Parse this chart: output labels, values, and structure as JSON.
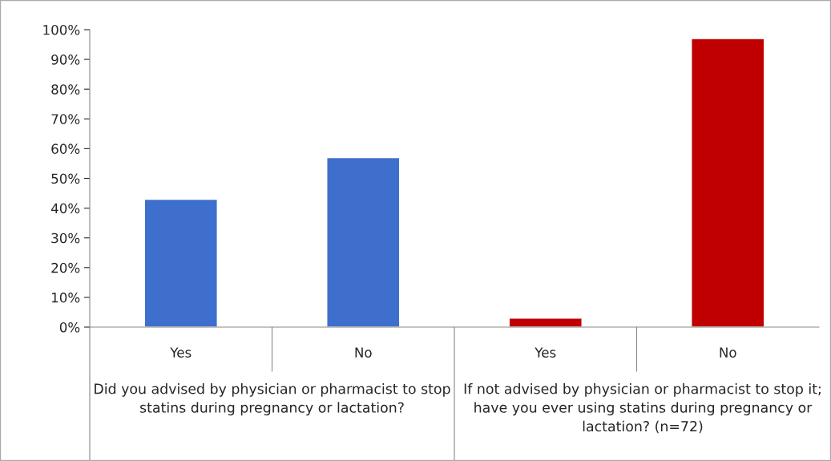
{
  "chart_data": {
    "type": "bar",
    "categories": [
      "Yes",
      "No",
      "Yes",
      "No"
    ],
    "values": [
      43,
      57,
      3,
      97
    ],
    "colors": [
      "#3f6fcc",
      "#3f6fcc",
      "#c00000",
      "#c00000"
    ],
    "ylim": [
      0,
      100
    ],
    "yticks": [
      {
        "value": 0,
        "label": "0%"
      },
      {
        "value": 10,
        "label": "10%"
      },
      {
        "value": 20,
        "label": "20%"
      },
      {
        "value": 30,
        "label": "30%"
      },
      {
        "value": 40,
        "label": "40%"
      },
      {
        "value": 50,
        "label": "50%"
      },
      {
        "value": 60,
        "label": "60%"
      },
      {
        "value": 70,
        "label": "70%"
      },
      {
        "value": 80,
        "label": "80%"
      },
      {
        "value": 90,
        "label": "90%"
      },
      {
        "value": 100,
        "label": "100%"
      }
    ],
    "grid": false,
    "annotations": [
      "Did you advised by physician or pharmacist to stop statins during pregnancy or lactation?",
      "If not advised by physician or pharmacist to stop it; have you ever using statins during pregnancy or lactation? (n=72)"
    ]
  }
}
